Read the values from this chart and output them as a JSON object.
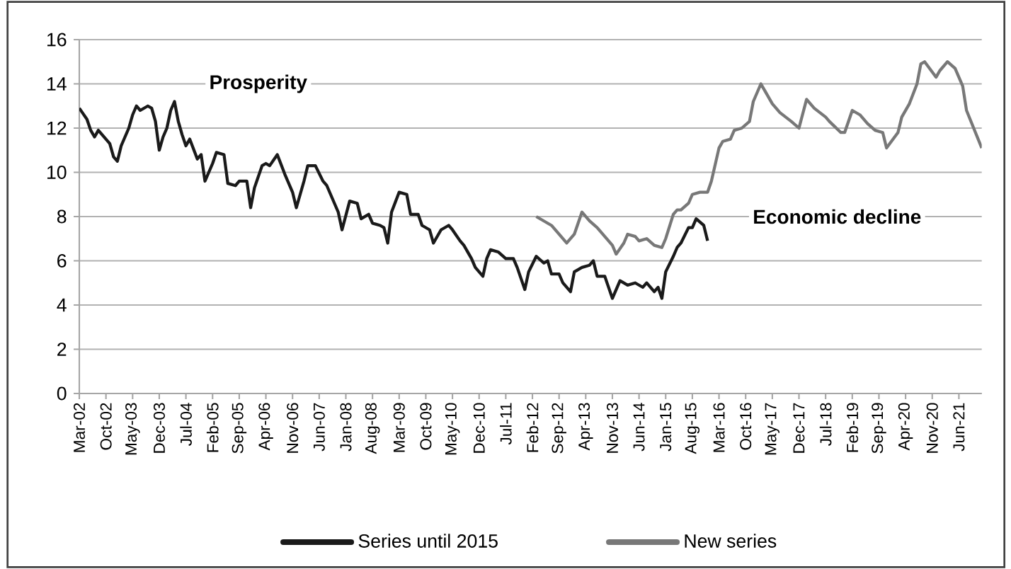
{
  "chart_data": {
    "type": "line",
    "xlim": [
      "2002-03",
      "2021-12"
    ],
    "ylim": [
      0,
      16
    ],
    "yticks": [
      0,
      2,
      4,
      6,
      8,
      10,
      12,
      14,
      16
    ],
    "xticks": [
      {
        "value": "2002-03",
        "label": "Mar-02"
      },
      {
        "value": "2002-10",
        "label": "Oct-02"
      },
      {
        "value": "2003-05",
        "label": "May-03"
      },
      {
        "value": "2003-12",
        "label": "Dec-03"
      },
      {
        "value": "2004-07",
        "label": "Jul-04"
      },
      {
        "value": "2005-02",
        "label": "Feb-05"
      },
      {
        "value": "2005-09",
        "label": "Sep-05"
      },
      {
        "value": "2006-04",
        "label": "Apr-06"
      },
      {
        "value": "2006-11",
        "label": "Nov-06"
      },
      {
        "value": "2007-06",
        "label": "Jun-07"
      },
      {
        "value": "2008-01",
        "label": "Jan-08"
      },
      {
        "value": "2008-08",
        "label": "Aug-08"
      },
      {
        "value": "2009-03",
        "label": "Mar-09"
      },
      {
        "value": "2009-10",
        "label": "Oct-09"
      },
      {
        "value": "2010-05",
        "label": "May-10"
      },
      {
        "value": "2010-12",
        "label": "Dec-10"
      },
      {
        "value": "2011-07",
        "label": "Jul-11"
      },
      {
        "value": "2012-02",
        "label": "Feb-12"
      },
      {
        "value": "2012-09",
        "label": "Sep-12"
      },
      {
        "value": "2013-04",
        "label": "Apr-13"
      },
      {
        "value": "2013-11",
        "label": "Nov-13"
      },
      {
        "value": "2014-06",
        "label": "Jun-14"
      },
      {
        "value": "2015-01",
        "label": "Jan-15"
      },
      {
        "value": "2015-08",
        "label": "Aug-15"
      },
      {
        "value": "2016-03",
        "label": "Mar-16"
      },
      {
        "value": "2016-10",
        "label": "Oct-16"
      },
      {
        "value": "2017-05",
        "label": "May-17"
      },
      {
        "value": "2017-12",
        "label": "Dec-17"
      },
      {
        "value": "2018-07",
        "label": "Jul-18"
      },
      {
        "value": "2019-02",
        "label": "Feb-19"
      },
      {
        "value": "2019-09",
        "label": "Sep-19"
      },
      {
        "value": "2020-04",
        "label": "Apr-20"
      },
      {
        "value": "2020-11",
        "label": "Nov-20"
      },
      {
        "value": "2021-06",
        "label": "Jun-21"
      }
    ],
    "grid": "y",
    "legend": "bottom",
    "annotations": [
      "Prosperity",
      "Economic decline"
    ],
    "series": [
      {
        "name": "Series until 2015",
        "color": "#1a1a1a",
        "x": [
          "2002-03",
          "2002-05",
          "2002-06",
          "2002-07",
          "2002-08",
          "2002-09",
          "2002-11",
          "2002-12",
          "2003-01",
          "2003-02",
          "2003-04",
          "2003-05",
          "2003-06",
          "2003-07",
          "2003-09",
          "2003-10",
          "2003-11",
          "2003-12",
          "2004-01",
          "2004-02",
          "2004-03",
          "2004-04",
          "2004-05",
          "2004-06",
          "2004-07",
          "2004-08",
          "2004-10",
          "2004-11",
          "2004-12",
          "2005-02",
          "2005-03",
          "2005-05",
          "2005-06",
          "2005-08",
          "2005-09",
          "2005-11",
          "2005-12",
          "2006-01",
          "2006-03",
          "2006-04",
          "2006-05",
          "2006-07",
          "2006-09",
          "2006-11",
          "2006-12",
          "2007-02",
          "2007-03",
          "2007-05",
          "2007-07",
          "2007-08",
          "2007-11",
          "2007-12",
          "2008-02",
          "2008-04",
          "2008-05",
          "2008-07",
          "2008-08",
          "2008-10",
          "2008-11",
          "2008-12",
          "2009-01",
          "2009-03",
          "2009-05",
          "2009-06",
          "2009-08",
          "2009-09",
          "2009-11",
          "2009-12",
          "2010-02",
          "2010-04",
          "2010-05",
          "2010-07",
          "2010-08",
          "2010-10",
          "2010-11",
          "2011-01",
          "2011-02",
          "2011-03",
          "2011-05",
          "2011-07",
          "2011-09",
          "2011-10",
          "2011-12",
          "2012-01",
          "2012-03",
          "2012-05",
          "2012-06",
          "2012-07",
          "2012-09",
          "2012-10",
          "2012-12",
          "2013-01",
          "2013-03",
          "2013-05",
          "2013-06",
          "2013-07",
          "2013-09",
          "2013-11",
          "2014-01",
          "2014-03",
          "2014-05",
          "2014-07",
          "2014-08",
          "2014-10",
          "2014-11",
          "2014-12",
          "2015-01",
          "2015-03",
          "2015-04",
          "2015-05",
          "2015-07",
          "2015-08",
          "2015-09",
          "2015-11",
          "2015-12"
        ],
        "values": [
          12.9,
          12.4,
          11.9,
          11.6,
          11.9,
          11.7,
          11.3,
          10.7,
          10.5,
          11.2,
          12.0,
          12.6,
          13.0,
          12.8,
          13.0,
          12.9,
          12.3,
          11.0,
          11.6,
          12.0,
          12.8,
          13.2,
          12.3,
          11.7,
          11.2,
          11.5,
          10.6,
          10.8,
          9.6,
          10.4,
          10.9,
          10.8,
          9.5,
          9.4,
          9.6,
          9.6,
          8.4,
          9.3,
          10.3,
          10.4,
          10.3,
          10.8,
          9.9,
          9.1,
          8.4,
          9.6,
          10.3,
          10.3,
          9.6,
          9.4,
          8.2,
          7.4,
          8.7,
          8.6,
          7.9,
          8.1,
          7.7,
          7.6,
          7.5,
          6.8,
          8.2,
          9.1,
          9.0,
          8.1,
          8.1,
          7.6,
          7.4,
          6.8,
          7.4,
          7.6,
          7.4,
          6.9,
          6.7,
          6.1,
          5.7,
          5.3,
          6.1,
          6.5,
          6.4,
          6.1,
          6.1,
          5.7,
          4.7,
          5.5,
          6.2,
          5.9,
          6.0,
          5.4,
          5.4,
          5.0,
          4.6,
          5.5,
          5.7,
          5.8,
          6.0,
          5.3,
          5.3,
          4.3,
          5.1,
          4.9,
          5.0,
          4.8,
          5.0,
          4.6,
          4.8,
          4.3,
          5.5,
          6.2,
          6.6,
          6.8,
          7.5,
          7.5,
          7.9,
          7.6,
          6.9
        ]
      },
      {
        "name": "New series",
        "color": "#787878",
        "x": [
          "2012-03",
          "2012-05",
          "2012-07",
          "2012-08",
          "2012-10",
          "2012-11",
          "2013-01",
          "2013-03",
          "2013-05",
          "2013-07",
          "2013-09",
          "2013-11",
          "2013-12",
          "2014-02",
          "2014-03",
          "2014-05",
          "2014-06",
          "2014-08",
          "2014-10",
          "2014-12",
          "2015-01",
          "2015-03",
          "2015-04",
          "2015-05",
          "2015-07",
          "2015-08",
          "2015-10",
          "2015-12",
          "2016-01",
          "2016-03",
          "2016-04",
          "2016-06",
          "2016-07",
          "2016-09",
          "2016-11",
          "2016-12",
          "2017-02",
          "2017-03",
          "2017-05",
          "2017-07",
          "2017-10",
          "2017-12",
          "2018-02",
          "2018-04",
          "2018-07",
          "2018-08",
          "2018-11",
          "2018-12",
          "2019-02",
          "2019-04",
          "2019-06",
          "2019-08",
          "2019-10",
          "2019-11",
          "2020-02",
          "2020-03",
          "2020-05",
          "2020-07",
          "2020-08",
          "2020-09",
          "2020-12",
          "2021-01",
          "2021-03",
          "2021-05",
          "2021-07",
          "2021-08",
          "2021-12"
        ],
        "values": [
          8.0,
          7.8,
          7.6,
          7.4,
          7.0,
          6.8,
          7.2,
          8.2,
          7.8,
          7.5,
          7.1,
          6.7,
          6.3,
          6.8,
          7.2,
          7.1,
          6.9,
          7.0,
          6.7,
          6.6,
          7.0,
          8.1,
          8.3,
          8.3,
          8.6,
          9.0,
          9.1,
          9.1,
          9.6,
          11.1,
          11.4,
          11.5,
          11.9,
          12.0,
          12.3,
          13.2,
          14.0,
          13.7,
          13.1,
          12.7,
          12.3,
          12.0,
          13.3,
          12.9,
          12.5,
          12.3,
          11.8,
          11.8,
          12.8,
          12.6,
          12.2,
          11.9,
          11.8,
          11.1,
          11.8,
          12.5,
          13.1,
          14.0,
          14.9,
          15.0,
          14.3,
          14.6,
          15.0,
          14.7,
          13.9,
          12.8,
          11.1
        ]
      }
    ]
  }
}
